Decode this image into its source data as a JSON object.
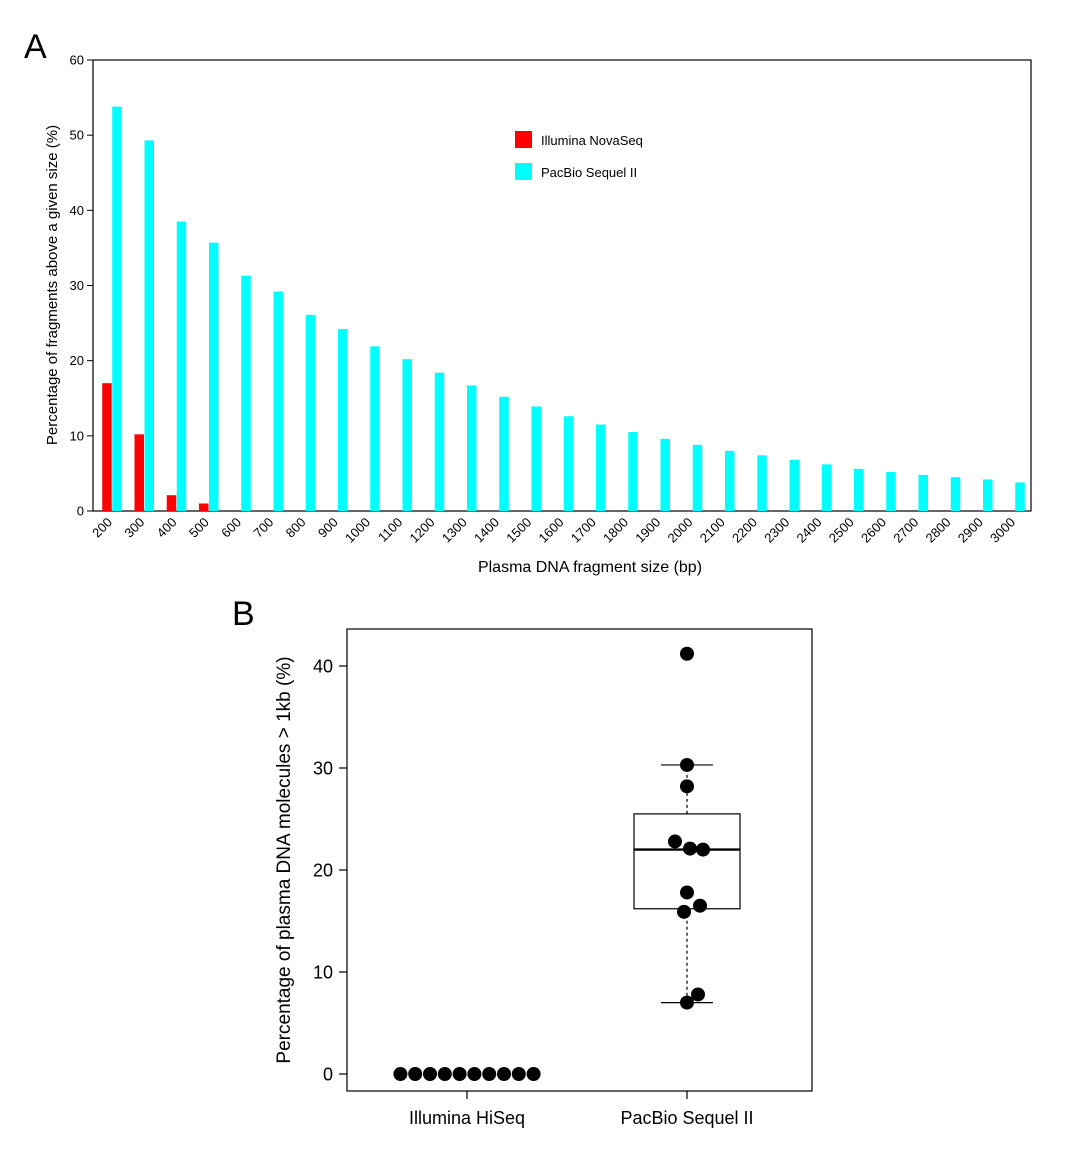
{
  "chart_data": [
    {
      "panel": "A",
      "type": "bar",
      "title": "",
      "xlabel": "Plasma DNA fragment size (bp)",
      "ylabel": "Percentage of fragments above a given size (%)",
      "ylim": [
        0,
        60
      ],
      "yticks": [
        0,
        10,
        20,
        30,
        40,
        50,
        60
      ],
      "categories": [
        "200",
        "300",
        "400",
        "500",
        "600",
        "700",
        "800",
        "900",
        "1000",
        "1100",
        "1200",
        "1300",
        "1400",
        "1500",
        "1600",
        "1700",
        "1800",
        "1900",
        "2000",
        "2100",
        "2200",
        "2300",
        "2400",
        "2500",
        "2600",
        "2700",
        "2800",
        "2900",
        "3000"
      ],
      "series": [
        {
          "name": "Illumina NovaSeq",
          "color": "#ff0000",
          "values": [
            17.0,
            10.2,
            2.1,
            1.0,
            0,
            0,
            0,
            0,
            0,
            0,
            0,
            0,
            0,
            0,
            0,
            0,
            0,
            0,
            0,
            0,
            0,
            0,
            0,
            0,
            0,
            0,
            0,
            0,
            0
          ]
        },
        {
          "name": "PacBio Sequel II",
          "color": "#00ffff",
          "values": [
            53.8,
            49.3,
            38.5,
            35.7,
            31.3,
            29.2,
            26.1,
            24.2,
            21.9,
            20.2,
            18.4,
            16.7,
            15.2,
            13.9,
            12.6,
            11.5,
            10.5,
            9.6,
            8.8,
            8.0,
            7.4,
            6.8,
            6.2,
            5.6,
            5.2,
            4.8,
            4.5,
            4.2,
            3.8
          ]
        }
      ],
      "legend": "top-right"
    },
    {
      "panel": "B",
      "type": "box",
      "title": "",
      "xlabel": "",
      "ylabel": "Percentage of plasma DNA molecules > 1kb (%)",
      "ylim": [
        -1.5,
        44
      ],
      "yticks": [
        0,
        10,
        20,
        30,
        40
      ],
      "categories": [
        "Illumina HiSeq",
        "PacBio Sequel II"
      ],
      "groups": [
        {
          "name": "Illumina HiSeq",
          "points": [
            0,
            0,
            0,
            0,
            0,
            0,
            0,
            0,
            0,
            0
          ]
        },
        {
          "name": "PacBio Sequel II",
          "box": {
            "whisker_low": 7.0,
            "q1": 16.2,
            "median": 22.0,
            "q3": 25.5,
            "whisker_high": 30.3
          },
          "points": [
            41.2,
            30.3,
            28.2,
            22.8,
            22.1,
            22.0,
            17.8,
            16.5,
            15.9,
            7.8,
            7.0
          ]
        }
      ]
    }
  ]
}
